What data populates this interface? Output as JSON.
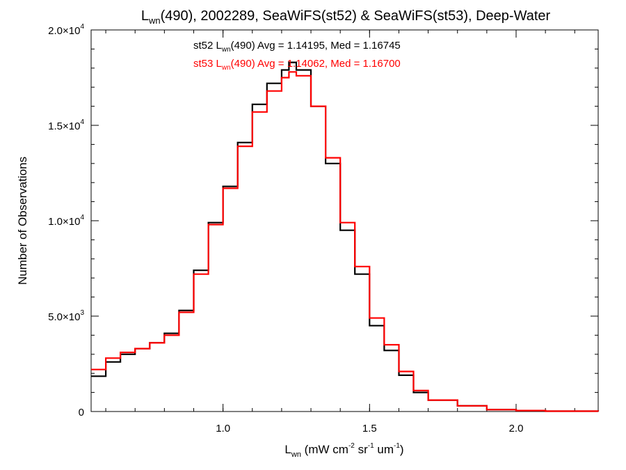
{
  "chart_data": {
    "type": "line",
    "title": {
      "prefix": "L",
      "prefix_sub": "wn",
      "rest": "(490), 2002289, SeaWiFS(st52) & SeaWiFS(st53), Deep-Water"
    },
    "xlabel": {
      "prefix": "L",
      "prefix_sub": "wn",
      "units_parts": [
        {
          "t": " (mW cm",
          "s": "n"
        },
        {
          "t": "-2",
          "s": "sup"
        },
        {
          "t": " sr",
          "s": "n"
        },
        {
          "t": "-1",
          "s": "sup"
        },
        {
          "t": " um",
          "s": "n"
        },
        {
          "t": "-1",
          "s": "sup"
        },
        {
          "t": ")",
          "s": "n"
        }
      ]
    },
    "ylabel": "Number of Observations",
    "xlim": [
      0.55,
      2.28
    ],
    "ylim": [
      0,
      20000
    ],
    "xticks": [
      {
        "value": 1.0,
        "label": "1.0"
      },
      {
        "value": 1.5,
        "label": "1.5"
      },
      {
        "value": 2.0,
        "label": "2.0"
      }
    ],
    "yticks": [
      {
        "value": 0,
        "mant": "0",
        "exp": ""
      },
      {
        "value": 5000,
        "mant": "5.0×10",
        "exp": "3"
      },
      {
        "value": 10000,
        "mant": "1.0×10",
        "exp": "4"
      },
      {
        "value": 15000,
        "mant": "1.5×10",
        "exp": "4"
      },
      {
        "value": 20000,
        "mant": "2.0×10",
        "exp": "4"
      }
    ],
    "x_minor_step": 0.1,
    "y_minor_step": 1000,
    "grid": false,
    "annotations": [
      {
        "color": "#000000",
        "pre": "st52 L",
        "sub": "wn",
        "post": "(490) Avg = 1.14195, Med = 1.16745"
      },
      {
        "color": "#ff0000",
        "pre": "st53 L",
        "sub": "wn",
        "post": "(490) Avg = 1.14062, Med = 1.16700"
      }
    ],
    "series": [
      {
        "color": "#000000",
        "step": "histogram",
        "x": [
          0.55,
          0.6,
          0.65,
          0.7,
          0.75,
          0.8,
          0.85,
          0.9,
          0.95,
          1.0,
          1.05,
          1.1,
          1.15,
          1.2,
          1.225,
          1.25,
          1.3,
          1.35,
          1.4,
          1.45,
          1.5,
          1.55,
          1.6,
          1.65,
          1.7,
          1.8,
          1.9,
          2.0,
          2.1,
          2.28
        ],
        "y": [
          1850,
          2600,
          3000,
          3300,
          3600,
          4100,
          5300,
          7400,
          9900,
          11800,
          14100,
          16100,
          17200,
          17900,
          18300,
          17900,
          16000,
          13000,
          9500,
          7200,
          4500,
          3200,
          1900,
          1000,
          600,
          300,
          100,
          50,
          20,
          10
        ]
      },
      {
        "color": "#ff0000",
        "step": "histogram",
        "x": [
          0.55,
          0.6,
          0.65,
          0.7,
          0.75,
          0.8,
          0.85,
          0.9,
          0.95,
          1.0,
          1.05,
          1.1,
          1.15,
          1.2,
          1.225,
          1.25,
          1.3,
          1.35,
          1.4,
          1.45,
          1.5,
          1.55,
          1.6,
          1.65,
          1.7,
          1.8,
          1.9,
          2.0,
          2.1,
          2.28
        ],
        "y": [
          2200,
          2800,
          3100,
          3300,
          3600,
          4000,
          5200,
          7200,
          9800,
          11700,
          13900,
          15700,
          16800,
          17500,
          17800,
          17600,
          16000,
          13300,
          9900,
          7600,
          4900,
          3500,
          2100,
          1100,
          600,
          300,
          100,
          50,
          20,
          10
        ]
      }
    ]
  }
}
